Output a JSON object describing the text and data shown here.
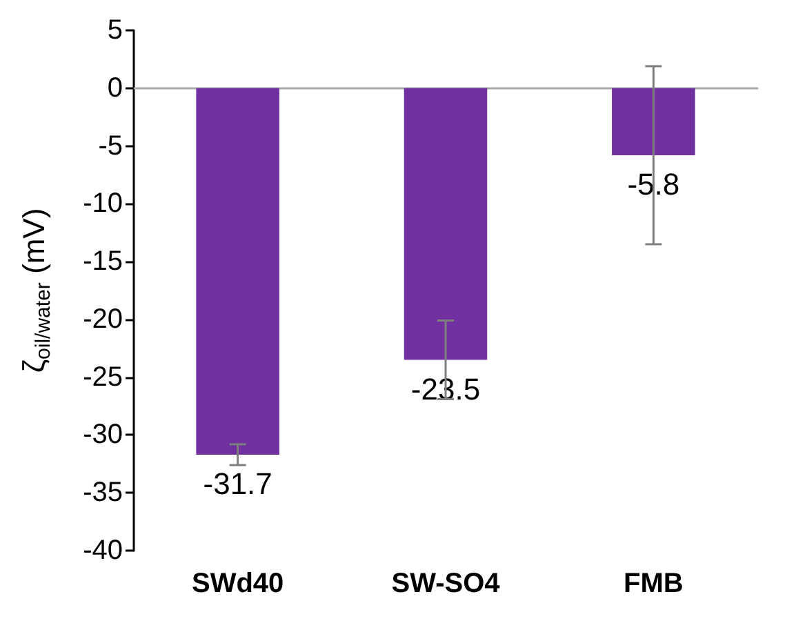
{
  "chart_data": {
    "type": "bar",
    "ylabel": "ζ$_{oil/water}$ (mV)",
    "categories": [
      "SWd40",
      "SW-SO4",
      "FMB"
    ],
    "values": [
      -31.7,
      -23.5,
      -5.8
    ],
    "errors": [
      0.9,
      3.4,
      7.7
    ],
    "color": "#7030a0",
    "data_labels": true,
    "ylim": [
      -40,
      5
    ],
    "yticks": [
      -40,
      -35,
      -30,
      -25,
      -20,
      -15,
      -10,
      -5,
      0,
      5
    ]
  }
}
